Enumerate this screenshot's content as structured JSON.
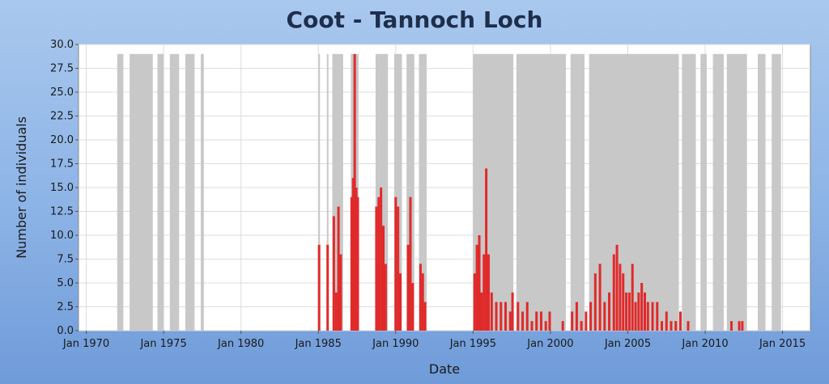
{
  "chart_data": {
    "type": "bar",
    "title": "Coot - Tannoch Loch",
    "xlabel": "Date",
    "ylabel": "Number of individuals",
    "xlim": [
      1969.5,
      2016.8
    ],
    "ylim": [
      0,
      30
    ],
    "x_ticks": [
      {
        "label": "Jan 1970",
        "year": 1970
      },
      {
        "label": "Jan 1975",
        "year": 1975
      },
      {
        "label": "Jan 1980",
        "year": 1980
      },
      {
        "label": "Jan 1985",
        "year": 1985
      },
      {
        "label": "Jan 1990",
        "year": 1990
      },
      {
        "label": "Jan 1995",
        "year": 1995
      },
      {
        "label": "Jan 2000",
        "year": 2000
      },
      {
        "label": "Jan 2005",
        "year": 2005
      },
      {
        "label": "Jan 2010",
        "year": 2010
      },
      {
        "label": "Jan 2015",
        "year": 2015
      }
    ],
    "y_ticks": [
      "0.0",
      "2.5",
      "5.0",
      "7.5",
      "10.0",
      "12.5",
      "15.0",
      "17.5",
      "20.0",
      "22.5",
      "25.0",
      "27.5",
      "30.0"
    ],
    "grid": true,
    "colors": {
      "counts": "#e02a2a",
      "survey_periods": "#c8c8c8",
      "plot_background": "#ffffff",
      "grid": "#dcdcdc",
      "title": "#1e2e4d"
    },
    "survey_periods": [
      [
        1972.0,
        1972.4
      ],
      [
        1972.8,
        1974.3
      ],
      [
        1974.6,
        1975.0
      ],
      [
        1975.4,
        1976.0
      ],
      [
        1976.4,
        1977.0
      ],
      [
        1977.4,
        1977.6
      ],
      [
        1985.0,
        1985.1
      ],
      [
        1985.55,
        1985.65
      ],
      [
        1985.9,
        1986.6
      ],
      [
        1987.1,
        1987.6
      ],
      [
        1988.7,
        1989.5
      ],
      [
        1989.9,
        1990.4
      ],
      [
        1990.7,
        1991.2
      ],
      [
        1991.5,
        1992.0
      ],
      [
        1995.0,
        1997.6
      ],
      [
        1997.8,
        2001.0
      ],
      [
        2001.3,
        2002.2
      ],
      [
        2002.5,
        2008.3
      ],
      [
        2008.5,
        2009.4
      ],
      [
        2009.7,
        2010.1
      ],
      [
        2010.5,
        2011.2
      ],
      [
        2011.4,
        2012.7
      ],
      [
        2013.4,
        2013.9
      ],
      [
        2014.3,
        2014.9
      ]
    ],
    "series": [
      {
        "points": [
          [
            1985.05,
            9
          ],
          [
            1985.6,
            9
          ],
          [
            1986.0,
            12
          ],
          [
            1986.15,
            4
          ],
          [
            1986.3,
            13
          ],
          [
            1986.45,
            8
          ],
          [
            1987.15,
            14
          ],
          [
            1987.25,
            16
          ],
          [
            1987.35,
            29
          ],
          [
            1987.45,
            15
          ],
          [
            1987.55,
            14
          ],
          [
            1988.75,
            13
          ],
          [
            1988.9,
            14
          ],
          [
            1989.05,
            15
          ],
          [
            1989.2,
            11
          ],
          [
            1989.35,
            7
          ],
          [
            1990.0,
            14
          ],
          [
            1990.15,
            13
          ],
          [
            1990.3,
            6
          ],
          [
            1990.8,
            9
          ],
          [
            1990.95,
            14
          ],
          [
            1991.1,
            5
          ],
          [
            1991.6,
            7
          ],
          [
            1991.75,
            6
          ],
          [
            1991.9,
            3
          ],
          [
            1995.1,
            6
          ],
          [
            1995.25,
            9
          ],
          [
            1995.4,
            10
          ],
          [
            1995.55,
            4
          ],
          [
            1995.7,
            8
          ],
          [
            1995.85,
            17
          ],
          [
            1996.0,
            8
          ],
          [
            1996.2,
            4
          ],
          [
            1996.5,
            3
          ],
          [
            1996.8,
            3
          ],
          [
            1997.1,
            3
          ],
          [
            1997.4,
            2
          ],
          [
            1997.55,
            4
          ],
          [
            1997.9,
            3
          ],
          [
            1998.2,
            2
          ],
          [
            1998.5,
            3
          ],
          [
            1998.8,
            1
          ],
          [
            1999.1,
            2
          ],
          [
            1999.4,
            2
          ],
          [
            1999.7,
            1
          ],
          [
            1999.95,
            2
          ],
          [
            2000.8,
            1
          ],
          [
            2001.4,
            2
          ],
          [
            2001.7,
            3
          ],
          [
            2002.0,
            1
          ],
          [
            2002.3,
            2
          ],
          [
            2002.6,
            3
          ],
          [
            2002.9,
            6
          ],
          [
            2003.2,
            7
          ],
          [
            2003.5,
            3
          ],
          [
            2003.8,
            4
          ],
          [
            2004.1,
            8
          ],
          [
            2004.3,
            9
          ],
          [
            2004.5,
            7
          ],
          [
            2004.7,
            6
          ],
          [
            2004.9,
            4
          ],
          [
            2005.1,
            4
          ],
          [
            2005.3,
            7
          ],
          [
            2005.5,
            3
          ],
          [
            2005.7,
            4
          ],
          [
            2005.9,
            5
          ],
          [
            2006.1,
            4
          ],
          [
            2006.3,
            3
          ],
          [
            2006.6,
            3
          ],
          [
            2006.9,
            3
          ],
          [
            2007.2,
            1
          ],
          [
            2007.5,
            2
          ],
          [
            2007.8,
            1
          ],
          [
            2008.1,
            1
          ],
          [
            2008.4,
            2
          ],
          [
            2008.9,
            1
          ],
          [
            2011.7,
            1
          ],
          [
            2012.2,
            1
          ],
          [
            2012.4,
            1
          ]
        ]
      }
    ]
  }
}
